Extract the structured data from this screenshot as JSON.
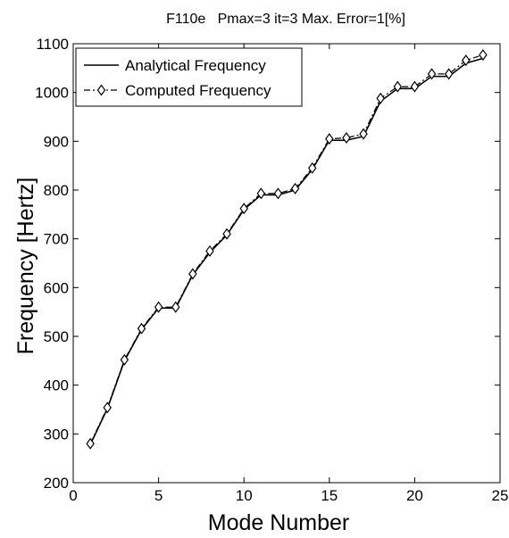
{
  "chart_data": {
    "type": "line",
    "title": "F110e   Pmax=3 it=3 Max. Error=1[%]",
    "xlabel": "Mode Number",
    "ylabel": "Frequency [Hertz]",
    "xlim": [
      0,
      25
    ],
    "ylim": [
      200,
      1100
    ],
    "xticks": [
      0,
      5,
      10,
      15,
      20,
      25
    ],
    "yticks": [
      200,
      300,
      400,
      500,
      600,
      700,
      800,
      900,
      1000,
      1100
    ],
    "grid": false,
    "legend_position": "top-left",
    "x": [
      1,
      2,
      3,
      4,
      5,
      6,
      7,
      8,
      9,
      10,
      11,
      12,
      13,
      14,
      15,
      16,
      17,
      18,
      19,
      20,
      21,
      22,
      23,
      24
    ],
    "series": [
      {
        "name": "Analytical Frequency",
        "style": "solid",
        "color": "#000000",
        "values": [
          278,
          352,
          450,
          514,
          558,
          558,
          626,
          672,
          708,
          760,
          790,
          790,
          800,
          842,
          902,
          902,
          910,
          982,
          1008,
          1008,
          1033,
          1033,
          1060,
          1070
        ]
      },
      {
        "name": "Computed Frequency",
        "style": "dash-dot",
        "marker": "diamond",
        "color": "#000000",
        "values": [
          280,
          354,
          452,
          516,
          560,
          560,
          628,
          675,
          710,
          762,
          793,
          793,
          803,
          845,
          905,
          907,
          915,
          988,
          1012,
          1012,
          1038,
          1038,
          1066,
          1077
        ]
      }
    ]
  }
}
